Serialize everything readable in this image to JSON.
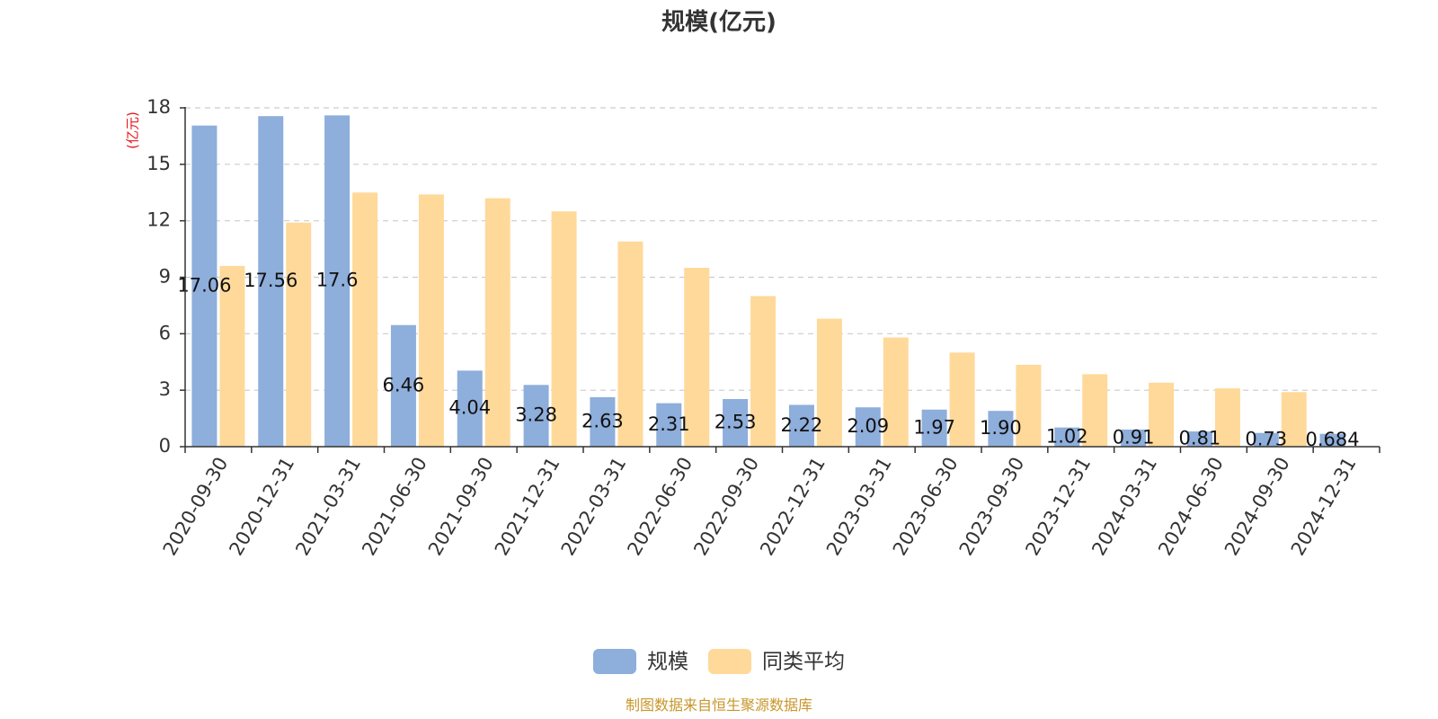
{
  "source_text": "制图数据来自恒生聚源数据库",
  "chart_data": {
    "type": "bar",
    "title": "规模(亿元)",
    "ylabel": "(亿元)",
    "xlabel": "",
    "ylim": [
      0,
      18
    ],
    "yticks": [
      0,
      3,
      6,
      9,
      12,
      15,
      18
    ],
    "ytick_labels": [
      "0",
      "3",
      "6",
      "9",
      "12",
      "15",
      "18"
    ],
    "grid": true,
    "legend_position": "bottom-center",
    "categories": [
      "2020-09-30",
      "2020-12-31",
      "2021-03-31",
      "2021-06-30",
      "2021-09-30",
      "2021-12-31",
      "2022-03-31",
      "2022-06-30",
      "2022-09-30",
      "2022-12-31",
      "2023-03-31",
      "2023-06-30",
      "2023-09-30",
      "2023-12-31",
      "2024-03-31",
      "2024-06-30",
      "2024-09-30",
      "2024-12-31"
    ],
    "series": [
      {
        "name": "规模",
        "color": "#8eaedb",
        "values": [
          17.06,
          17.56,
          17.6,
          6.46,
          4.04,
          3.28,
          2.63,
          2.31,
          2.53,
          2.22,
          2.09,
          1.97,
          1.9,
          1.02,
          0.91,
          0.81,
          0.73,
          0.684
        ],
        "labels": [
          "17.06",
          "17.56",
          "17.6",
          "6.46",
          "4.04",
          "3.28",
          "2.63",
          "2.31",
          "2.53",
          "2.22",
          "2.09",
          "1.97",
          "1.90",
          "1.02",
          "0.91",
          "0.81",
          "0.73",
          "0.684"
        ]
      },
      {
        "name": "同类平均",
        "color": "#ffd99a",
        "values": [
          9.6,
          11.9,
          13.5,
          13.4,
          13.2,
          12.5,
          10.9,
          9.5,
          8.0,
          6.8,
          5.8,
          5.0,
          4.35,
          3.85,
          3.4,
          3.1,
          2.9,
          null
        ]
      }
    ]
  }
}
